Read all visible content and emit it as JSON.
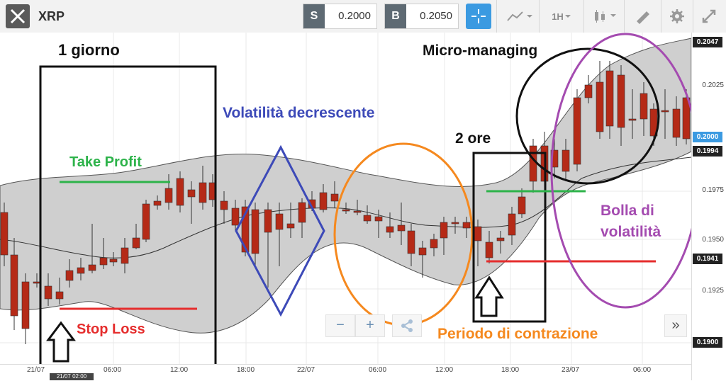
{
  "toolbar": {
    "symbol": "XRP",
    "sell_label": "S",
    "sell_price": "0.2000",
    "buy_label": "B",
    "buy_price": "0.2050",
    "timeframe": "1H",
    "icons": [
      "close-x-logo",
      "crosshair-icon",
      "line-chart-icon",
      "candlestick-icon",
      "drawing-icon",
      "gear-icon",
      "expand-icon"
    ]
  },
  "annotations": {
    "one_day": "1 giorno",
    "take_profit": "Take Profit",
    "stop_loss": "Stop Loss",
    "volatility_decreasing": "Volatilità decrescente",
    "two_hours": "2 ore",
    "micro_managing": "Micro-managing",
    "volatility_bubble_1": "Bolla di",
    "volatility_bubble_2": "volatilità",
    "contraction_period": "Periodo di contrazione"
  },
  "zoom": {
    "minus": "−",
    "plus": "+",
    "more": "»"
  },
  "axis": {
    "y_ticks": [
      "0.1975",
      "0.1950",
      "0.1925",
      "0.1900"
    ],
    "y_top_box": "0.2047",
    "y_price_box": "0.2000",
    "y_box_1994": "0.1994",
    "y_box_1941": "0.1941",
    "y_label_2025": "0.2025",
    "x_ticks": [
      "21/07",
      "06:00",
      "12:00",
      "18:00",
      "22/07",
      "06:00",
      "12:00",
      "18:00",
      "23/07",
      "06:00"
    ],
    "x_cursor": "21/07 02:00"
  },
  "colors": {
    "up": "#6aa85a",
    "down": "#b52a17",
    "band": "#cfcfcf",
    "tp": "#2db34a",
    "sl": "#e52d2d"
  }
}
